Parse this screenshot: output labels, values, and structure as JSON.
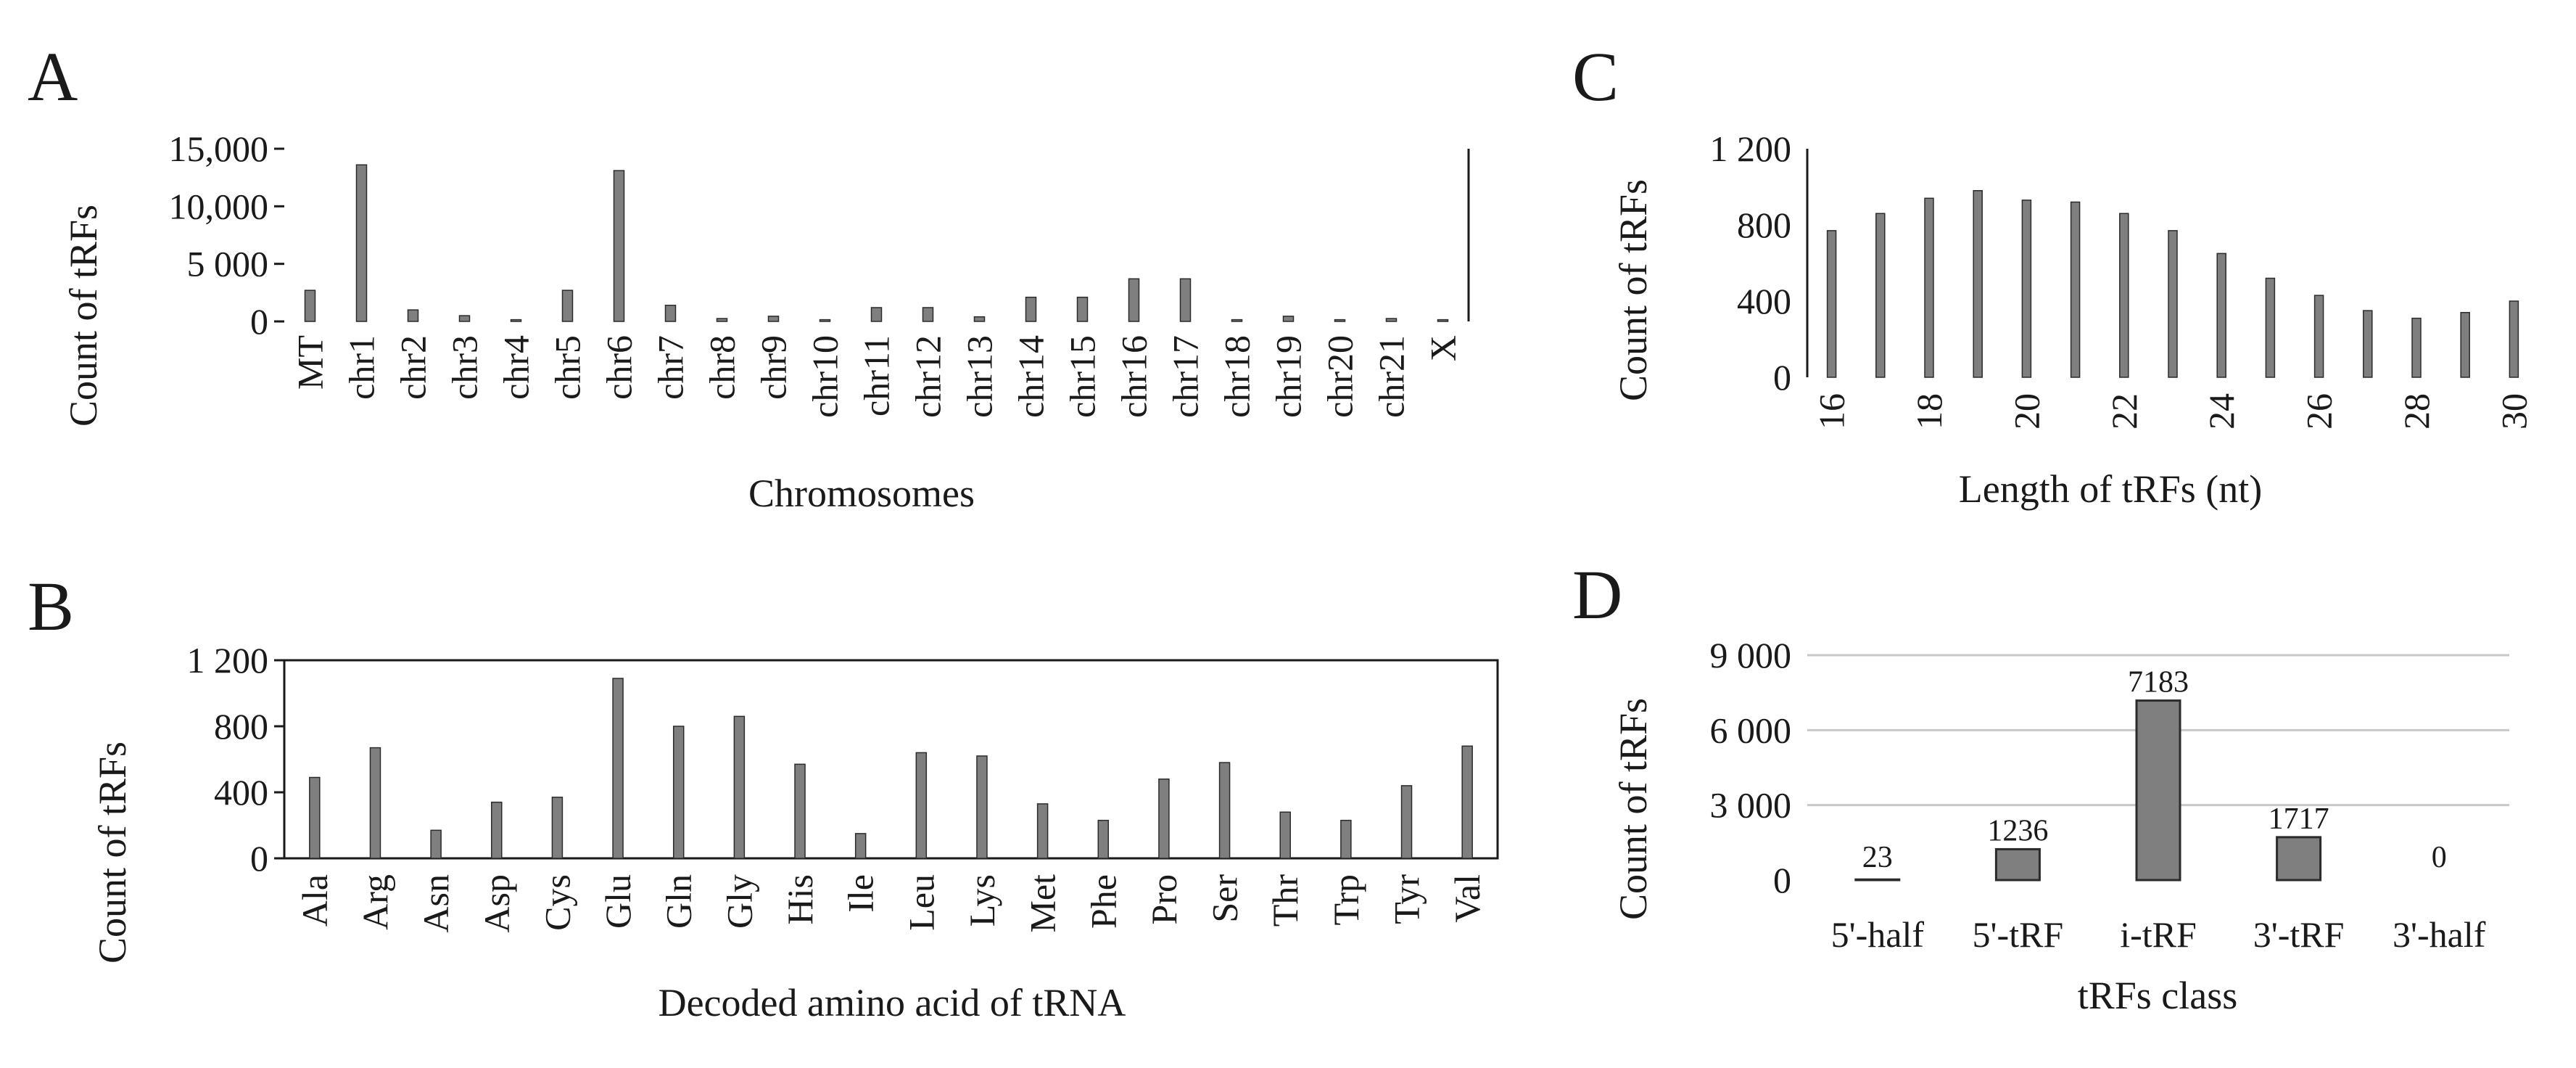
{
  "figure": {
    "panels": [
      "A",
      "B",
      "C",
      "D"
    ]
  },
  "colors": {
    "bar": "#7f7f7f",
    "bar_edge": "#2b2b2b",
    "axis": "#1a1a1a",
    "gridline": "#c8c8c8"
  },
  "chart_data": [
    {
      "panel": "A",
      "type": "bar",
      "title": "",
      "xlabel": "Chromosomes",
      "ylabel": "Count of tRFs",
      "categories": [
        "MT",
        "chr1",
        "chr2",
        "chr3",
        "chr4",
        "chr5",
        "chr6",
        "chr7",
        "chr8",
        "chr9",
        "chr10",
        "chr11",
        "chr12",
        "chr13",
        "chr14",
        "chr15",
        "chr16",
        "chr17",
        "chr18",
        "chr19",
        "chr20",
        "chr21",
        "X"
      ],
      "values": [
        2700,
        13600,
        1000,
        500,
        150,
        2700,
        13100,
        1400,
        250,
        450,
        150,
        1200,
        1200,
        400,
        2100,
        2100,
        3700,
        3700,
        150,
        450,
        150,
        250,
        150
      ],
      "ylim": [
        0,
        15000
      ],
      "yticks": [
        0,
        5000,
        10000,
        15000
      ],
      "ytick_labels": [
        "0",
        "5 000",
        "10,000",
        "15,000"
      ],
      "grid": false
    },
    {
      "panel": "B",
      "type": "bar",
      "title": "",
      "xlabel": "Decoded amino acid of tRNA",
      "ylabel": "Count of tRFs",
      "categories": [
        "Ala",
        "Arg",
        "Asn",
        "Asp",
        "Cys",
        "Glu",
        "Gln",
        "Gly",
        "His",
        "Ile",
        "Leu",
        "Lys",
        "Met",
        "Phe",
        "Pro",
        "Ser",
        "Thr",
        "Trp",
        "Tyr",
        "Val"
      ],
      "values": [
        490,
        670,
        170,
        340,
        370,
        1090,
        800,
        860,
        570,
        150,
        640,
        620,
        330,
        230,
        480,
        580,
        280,
        230,
        440,
        680
      ],
      "ylim": [
        0,
        1200
      ],
      "yticks": [
        0,
        400,
        800,
        1200
      ],
      "ytick_labels": [
        "0",
        "400",
        "800",
        "1 200"
      ],
      "grid": false
    },
    {
      "panel": "C",
      "type": "bar",
      "title": "",
      "xlabel": "Length of tRFs (nt)",
      "ylabel": "Count of tRFs",
      "x": [
        16,
        17,
        18,
        19,
        20,
        21,
        22,
        23,
        24,
        25,
        26,
        27,
        28,
        29,
        30
      ],
      "values": [
        770,
        860,
        940,
        980,
        930,
        920,
        860,
        770,
        650,
        520,
        430,
        350,
        310,
        340,
        400
      ],
      "xtick_labels": [
        "16",
        "18",
        "20",
        "22",
        "24",
        "26",
        "28",
        "30"
      ],
      "ylim": [
        0,
        1200
      ],
      "yticks": [
        0,
        400,
        800,
        1200
      ],
      "ytick_labels": [
        "0",
        "400",
        "800",
        "1 200"
      ],
      "grid": false
    },
    {
      "panel": "D",
      "type": "bar",
      "title": "",
      "xlabel": "tRFs class",
      "ylabel": "Count of tRFs",
      "categories": [
        "5'-half",
        "5'-tRF",
        "i-tRF",
        "3'-tRF",
        "3'-half"
      ],
      "values": [
        23,
        1236,
        7183,
        1717,
        0
      ],
      "data_labels": [
        "23",
        "1236",
        "7183",
        "1717",
        "0"
      ],
      "ylim": [
        0,
        9000
      ],
      "yticks": [
        0,
        3000,
        6000,
        9000
      ],
      "ytick_labels": [
        "0",
        "3 000",
        "6 000",
        "9 000"
      ],
      "grid": true
    }
  ]
}
